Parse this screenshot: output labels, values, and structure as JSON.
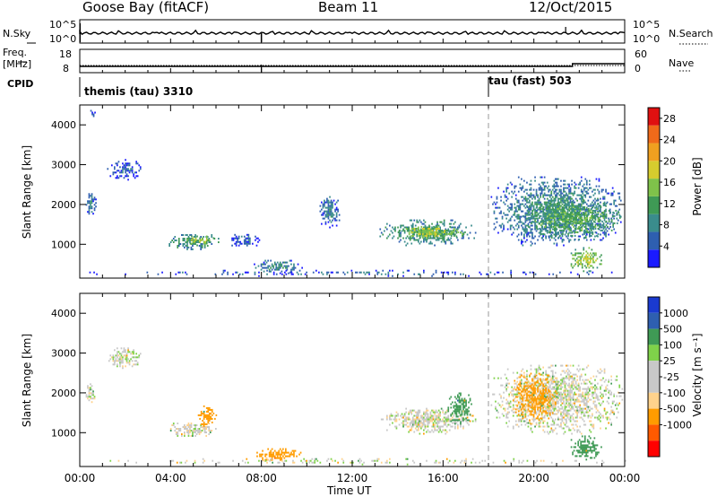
{
  "header": {
    "station": "Goose Bay (fitACF)",
    "beam": "Beam 11",
    "date": "12/Oct/2015"
  },
  "status_panels": {
    "nsky": {
      "label": "N.Sky",
      "tick_top": "10^5",
      "tick_bottom": "10^0"
    },
    "nsearch": {
      "label": "N.Search",
      "tick_top": "10^5",
      "tick_bottom": "10^0"
    },
    "freq": {
      "label_line1": "Freq.",
      "label_line2": "[MHz]",
      "tick_top": "18",
      "tick_bottom": "8"
    },
    "nave": {
      "label": "Nave",
      "tick_top": "60",
      "tick_bottom": "0"
    },
    "cpid": {
      "label": "CPID",
      "program1": "themis (tau) 3310",
      "program2": "tau (fast) 503",
      "switch_hour": 18
    }
  },
  "x_axis": {
    "title": "Time UT",
    "tick_labels": [
      "00:00",
      "04:00",
      "08:00",
      "12:00",
      "16:00",
      "20:00",
      "00:00"
    ],
    "range_hours": [
      0,
      24
    ]
  },
  "colors": {
    "power_scale": [
      "#1a1aff",
      "#2e5fb0",
      "#3a8c8c",
      "#3f9a55",
      "#7fc24a",
      "#d6cc2e",
      "#f0a020",
      "#f06a1a",
      "#e01010"
    ],
    "velocity_scale": [
      "#ff0000",
      "#ff5a00",
      "#ff9c00",
      "#ffd28c",
      "#c8c8c8",
      "#c8c8c8",
      "#7fd24a",
      "#3f9a55",
      "#2e5fb0",
      "#1a3ad0"
    ]
  },
  "chart_data": [
    {
      "type": "heatmap",
      "name": "power",
      "ylabel": "Slant Range [km]",
      "y_ticks": [
        "1000",
        "2000",
        "3000",
        "4000"
      ],
      "ylim": [
        150,
        4500
      ],
      "colorbar": {
        "label": "Power [dB]",
        "ticks": [
          "4",
          "8",
          "12",
          "16",
          "20",
          "24",
          "28"
        ],
        "range": [
          0,
          30
        ]
      },
      "regions": [
        {
          "t0": 0.2,
          "t1": 0.7,
          "r0": 1700,
          "r1": 2300,
          "level": 8
        },
        {
          "t0": 1.2,
          "t1": 2.7,
          "r0": 2600,
          "r1": 3100,
          "level": 6
        },
        {
          "t0": 0.4,
          "t1": 0.7,
          "r0": 4150,
          "r1": 4350,
          "level": 6
        },
        {
          "t0": 3.8,
          "t1": 6.1,
          "r0": 850,
          "r1": 1250,
          "level": 12
        },
        {
          "t0": 4.6,
          "t1": 5.9,
          "r0": 950,
          "r1": 1200,
          "level": 18
        },
        {
          "t0": 6.5,
          "t1": 8.0,
          "r0": 900,
          "r1": 1250,
          "level": 6
        },
        {
          "t0": 7.6,
          "t1": 9.8,
          "r0": 250,
          "r1": 600,
          "level": 10
        },
        {
          "t0": 10.5,
          "t1": 11.5,
          "r0": 1400,
          "r1": 2200,
          "level": 8
        },
        {
          "t0": 13.2,
          "t1": 17.4,
          "r0": 950,
          "r1": 1600,
          "level": 12
        },
        {
          "t0": 14.0,
          "t1": 17.0,
          "r0": 1100,
          "r1": 1450,
          "level": 18
        },
        {
          "t0": 18.1,
          "t1": 23.9,
          "r0": 950,
          "r1": 2700,
          "level": 10
        },
        {
          "t0": 19.5,
          "t1": 23.8,
          "r0": 1100,
          "r1": 2100,
          "level": 14
        },
        {
          "t0": 21.5,
          "t1": 23.0,
          "r0": 300,
          "r1": 900,
          "level": 18
        },
        {
          "t0": 0.0,
          "t1": 24.0,
          "r0": 180,
          "r1": 330,
          "level": 6
        }
      ]
    },
    {
      "type": "heatmap",
      "name": "velocity",
      "ylabel": "Slant Range [km]",
      "y_ticks": [
        "1000",
        "2000",
        "3000",
        "4000"
      ],
      "ylim": [
        150,
        4500
      ],
      "colorbar": {
        "label": "Velocity [m s⁻¹]",
        "ticks": [
          "-1000",
          "-500",
          "-100",
          "-25",
          "25",
          "100",
          "500",
          "1000"
        ]
      },
      "regions": [
        {
          "t0": 0.2,
          "t1": 0.7,
          "r0": 1700,
          "r1": 2300,
          "vel": 0
        },
        {
          "t0": 1.2,
          "t1": 2.7,
          "r0": 2600,
          "r1": 3100,
          "vel": 0
        },
        {
          "t0": 3.8,
          "t1": 6.1,
          "r0": 850,
          "r1": 1250,
          "vel": 0
        },
        {
          "t0": 5.2,
          "t1": 6.0,
          "r0": 1100,
          "r1": 1700,
          "vel": -150
        },
        {
          "t0": 7.6,
          "t1": 9.8,
          "r0": 250,
          "r1": 600,
          "vel": -300
        },
        {
          "t0": 13.2,
          "t1": 17.4,
          "r0": 950,
          "r1": 1600,
          "vel": 0
        },
        {
          "t0": 16.2,
          "t1": 17.3,
          "r0": 1200,
          "r1": 2000,
          "vel": 200
        },
        {
          "t0": 18.1,
          "t1": 23.9,
          "r0": 950,
          "r1": 2700,
          "vel": 0
        },
        {
          "t0": 19.0,
          "t1": 21.0,
          "r0": 1200,
          "r1": 2500,
          "vel": -120
        },
        {
          "t0": 21.5,
          "t1": 23.0,
          "r0": 300,
          "r1": 900,
          "vel": 150
        },
        {
          "t0": 0.0,
          "t1": 24.0,
          "r0": 180,
          "r1": 330,
          "vel": 0
        }
      ]
    }
  ]
}
